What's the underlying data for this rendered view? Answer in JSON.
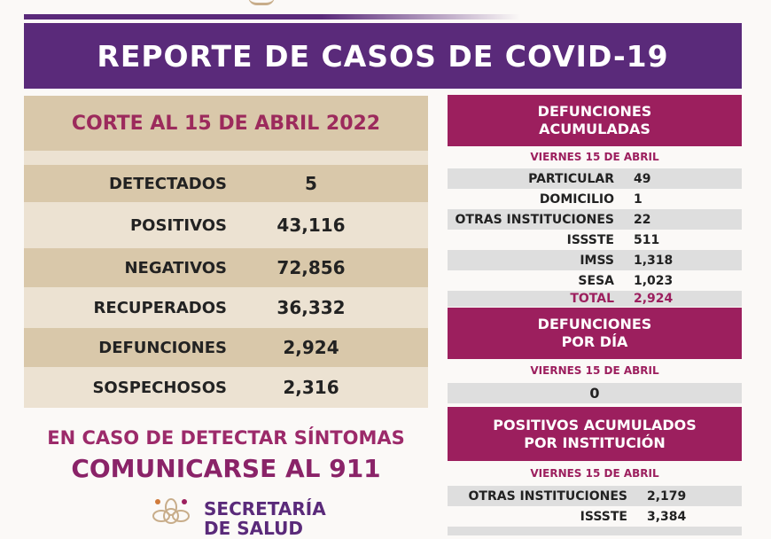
{
  "title": "REPORTE DE CASOS DE COVID-19",
  "left": {
    "header": "CORTE AL 15 DE ABRIL 2022",
    "rows": [
      {
        "label": "DETECTADOS",
        "value": "5"
      },
      {
        "label": "POSITIVOS",
        "value": "43,116"
      },
      {
        "label": "NEGATIVOS",
        "value": "72,856"
      },
      {
        "label": "RECUPERADOS",
        "value": "36,332"
      },
      {
        "label": "DEFUNCIONES",
        "value": "2,924"
      },
      {
        "label": "SOSPECHOSOS",
        "value": "2,316"
      }
    ]
  },
  "defunciones_acumuladas": {
    "title_1": "DEFUNCIONES",
    "title_2": "ACUMULADAS",
    "date": "VIERNES 15 DE ABRIL",
    "rows": [
      {
        "label": "PARTICULAR",
        "value": "49"
      },
      {
        "label": "DOMICILIO",
        "value": "1"
      },
      {
        "label": "OTRAS INSTITUCIONES",
        "value": "22"
      },
      {
        "label": "ISSSTE",
        "value": "511"
      },
      {
        "label": "IMSS",
        "value": "1,318"
      },
      {
        "label": "SESA",
        "value": "1,023"
      },
      {
        "label": "TOTAL",
        "value": "2,924"
      }
    ]
  },
  "defunciones_dia": {
    "title_1": "DEFUNCIONES",
    "title_2": "POR DÍA",
    "date": "VIERNES 15 DE ABRIL",
    "value": "0"
  },
  "positivos_institucion": {
    "title_1": "POSITIVOS ACUMULADOS",
    "title_2": "POR INSTITUCIÓN",
    "date": "VIERNES 15 DE ABRIL",
    "rows": [
      {
        "label": "OTRAS INSTITUCIONES",
        "value": "2,179"
      },
      {
        "label": "ISSSTE",
        "value": "3,384"
      }
    ]
  },
  "message": {
    "line1": "EN CASO DE DETECTAR SÍNTOMAS",
    "line2": "COMUNICARSE AL 911"
  },
  "brand": {
    "line1": "SECRETARÍA",
    "line2": "DE SALUD"
  },
  "colors": {
    "purple": "#5a2a7a",
    "magenta": "#9c1f5e",
    "tan": "#d9c8aa"
  }
}
